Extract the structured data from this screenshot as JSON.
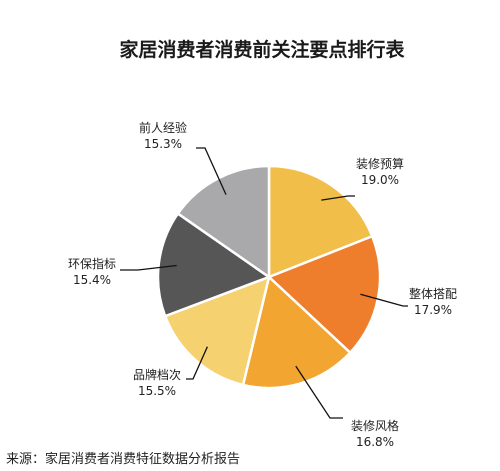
{
  "chart_data": {
    "type": "pie",
    "title": "家居消费者消费前关注要点排行表",
    "source": "来源：家居消费者消费特征数据分析报告",
    "slices": [
      {
        "label": "装修预算",
        "value": 19.0,
        "value_text": "19.0%",
        "color": "#F2BE4A"
      },
      {
        "label": "整体搭配",
        "value": 17.9,
        "value_text": "17.9%",
        "color": "#EE7D2C"
      },
      {
        "label": "装修风格",
        "value": 16.8,
        "value_text": "16.8%",
        "color": "#F3A532"
      },
      {
        "label": "品牌档次",
        "value": 15.5,
        "value_text": "15.5%",
        "color": "#F6D170"
      },
      {
        "label": "环保指标",
        "value": 15.4,
        "value_text": "15.4%",
        "color": "#565656"
      },
      {
        "label": "前人经验",
        "value": 15.3,
        "value_text": "15.3%",
        "color": "#A9A9AB"
      }
    ]
  }
}
